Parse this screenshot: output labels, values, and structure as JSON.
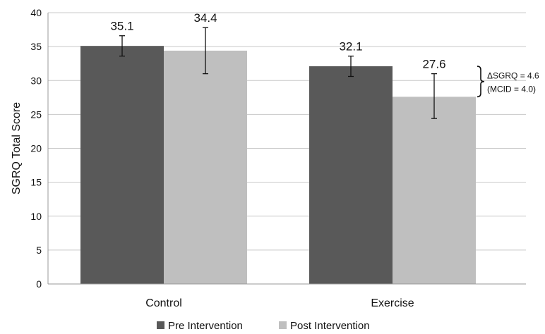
{
  "chart_data": {
    "type": "bar",
    "categories": [
      "Control",
      "Exercise"
    ],
    "series": [
      {
        "name": "Pre Intervention",
        "color": "#595959",
        "values": [
          35.1,
          32.1
        ],
        "error_low": [
          33.6,
          30.6
        ],
        "error_high": [
          36.6,
          33.6
        ]
      },
      {
        "name": "Post Intervention",
        "color": "#bfbfbf",
        "values": [
          34.4,
          27.6
        ],
        "error_low": [
          31.0,
          24.4
        ],
        "error_high": [
          37.8,
          31.0
        ]
      }
    ],
    "ylabel": "SGRQ Total Score",
    "ylim": [
      0,
      40
    ],
    "yticks": [
      0,
      5,
      10,
      15,
      20,
      25,
      30,
      35,
      40
    ],
    "grid": true,
    "legend_position": "bottom",
    "annotation": {
      "line1": "ΔSGRQ = 4.6",
      "line2": "(MCID = 4.0)"
    }
  }
}
